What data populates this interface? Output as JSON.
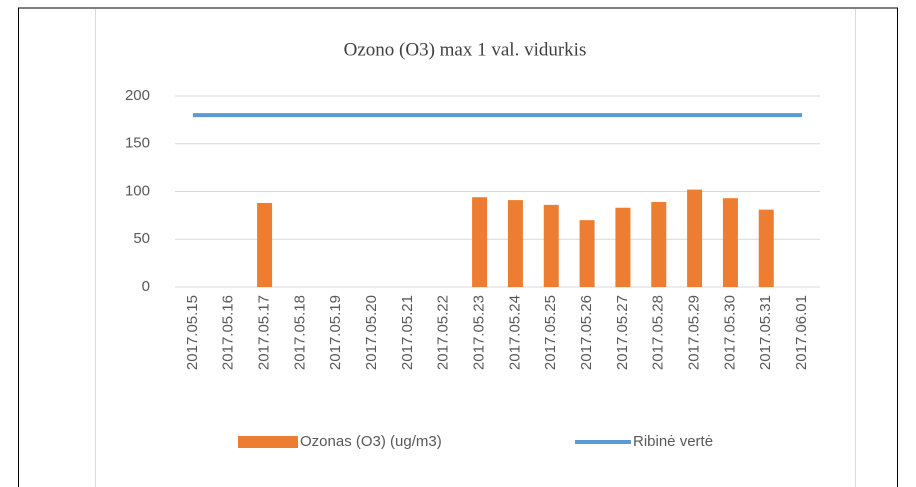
{
  "chart_data": {
    "type": "bar",
    "title": "Ozono (O3) max 1 val. vidurkis",
    "categories": [
      "2017.05.15",
      "2017.05.16",
      "2017.05.17",
      "2017.05.18",
      "2017.05.19",
      "2017.05.20",
      "2017.05.21",
      "2017.05.22",
      "2017.05.23",
      "2017.05.24",
      "2017.05.25",
      "2017.05.26",
      "2017.05.27",
      "2017.05.28",
      "2017.05.29",
      "2017.05.30",
      "2017.05.31",
      "2017.06.01"
    ],
    "series": [
      {
        "name": "Ozonas (O3) (ug/m3)",
        "type": "bar",
        "color": "#ed7d31",
        "values": [
          null,
          null,
          88,
          null,
          null,
          null,
          null,
          null,
          94,
          91,
          86,
          70,
          83,
          89,
          102,
          93,
          81,
          null
        ]
      },
      {
        "name": "Ribinė vertė",
        "type": "line",
        "color": "#5b9bd5",
        "values": [
          180,
          180,
          180,
          180,
          180,
          180,
          180,
          180,
          180,
          180,
          180,
          180,
          180,
          180,
          180,
          180,
          180,
          180
        ]
      }
    ],
    "ylim": [
      0,
      200
    ],
    "yticks": [
      0,
      50,
      100,
      150,
      200
    ],
    "grid": true,
    "legend": "bottom"
  }
}
